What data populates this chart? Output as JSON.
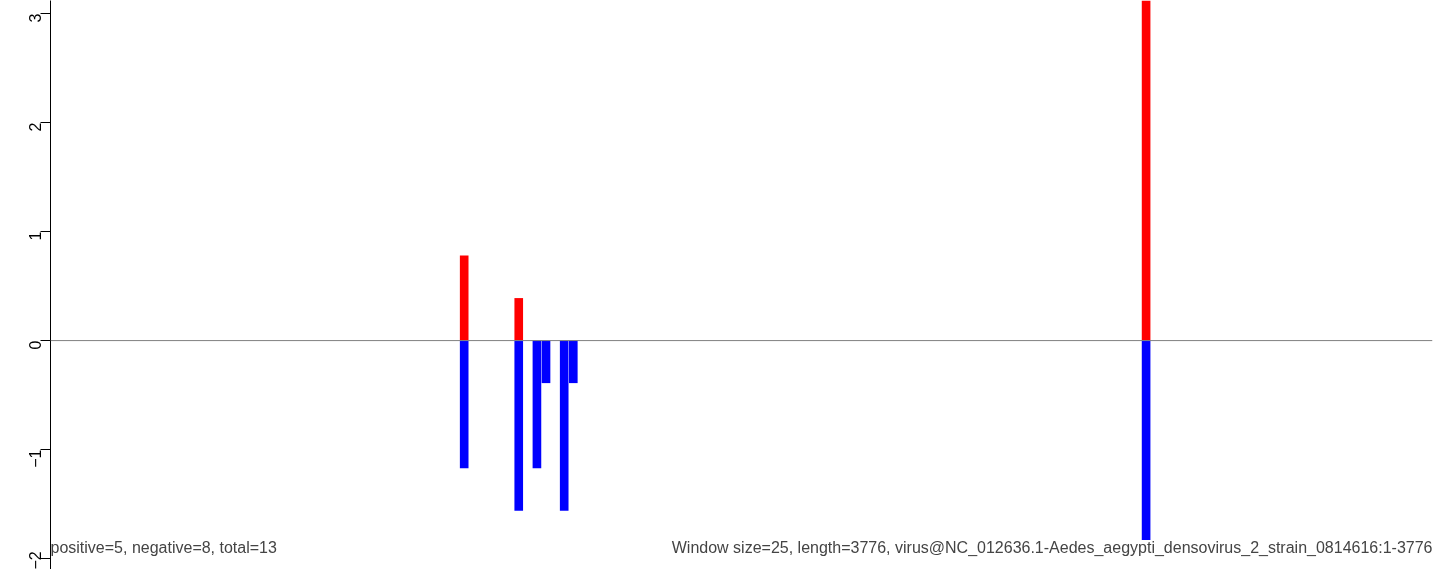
{
  "chart_data": {
    "type": "bar",
    "tick_labels": "y",
    "grid": false,
    "ylim": [
      -2.1,
      3.12
    ],
    "yticks": [
      -2,
      -1,
      0,
      1,
      2,
      3
    ],
    "categories": [
      null,
      null,
      null,
      null,
      null,
      null,
      null,
      null,
      null,
      null,
      null,
      null,
      null,
      null,
      null,
      null,
      null,
      null,
      null,
      null,
      null,
      null,
      null,
      null,
      null,
      null,
      null,
      null,
      null,
      null,
      null,
      null,
      null,
      null,
      null,
      null,
      null,
      null,
      null,
      null,
      null,
      null,
      null,
      null,
      null,
      null,
      null,
      null,
      null,
      null,
      null,
      null,
      null,
      null,
      null,
      null,
      null,
      null,
      null,
      null,
      null,
      null,
      null,
      null,
      null,
      null,
      null,
      null,
      null,
      null,
      null,
      null,
      null,
      null,
      null,
      null,
      null,
      null,
      null,
      null,
      null,
      null,
      null,
      null,
      null,
      null,
      null,
      null,
      null,
      null,
      null,
      null,
      null,
      null,
      null,
      null,
      null,
      null,
      null,
      null,
      null,
      null,
      null,
      null,
      null,
      null,
      null,
      null,
      null,
      null,
      null,
      null,
      null,
      null,
      null,
      null,
      null,
      null,
      null,
      null,
      null,
      null,
      null,
      null,
      null,
      null,
      null,
      null,
      null,
      null,
      null,
      null,
      null,
      null,
      null,
      null,
      null,
      null,
      null,
      null,
      null,
      null,
      null,
      null,
      null,
      null,
      null,
      null,
      null,
      null,
      null,
      null
    ],
    "series": [
      {
        "color": "#ff0000",
        "values": [
          0,
          0,
          0,
          0,
          0,
          0,
          0,
          0,
          0,
          0,
          0,
          0,
          0,
          0,
          0,
          0,
          0,
          0,
          0,
          0,
          0,
          0,
          0,
          0,
          0,
          0,
          0,
          0,
          0,
          0,
          0,
          0,
          0,
          0,
          0,
          0,
          0,
          0,
          0,
          0,
          0,
          0,
          0,
          0,
          0,
          0.78,
          0,
          0,
          0,
          0,
          0,
          0.39,
          0,
          0,
          0,
          0,
          0,
          0,
          0,
          0,
          0,
          0,
          0,
          0,
          0,
          0,
          0,
          0,
          0,
          0,
          0,
          0,
          0,
          0,
          0,
          0,
          0,
          0,
          0,
          0,
          0,
          0,
          0,
          0,
          0,
          0,
          0,
          0,
          0,
          0,
          0,
          0,
          0,
          0,
          0,
          0,
          0,
          0,
          0,
          0,
          0,
          0,
          0,
          0,
          0,
          0,
          0,
          0,
          0,
          0,
          0,
          0,
          0,
          0,
          0,
          0,
          0,
          0,
          0,
          0,
          3.12,
          0,
          0,
          0,
          0,
          0,
          0,
          0,
          0,
          0,
          0,
          0,
          0,
          0,
          0,
          0,
          0,
          0,
          0,
          0,
          0,
          0,
          0,
          0,
          0,
          0,
          0,
          0,
          0,
          0,
          0,
          0
        ]
      },
      {
        "color": "#0000ff",
        "values": [
          0,
          0,
          0,
          0,
          0,
          0,
          0,
          0,
          0,
          0,
          0,
          0,
          0,
          0,
          0,
          0,
          0,
          0,
          0,
          0,
          0,
          0,
          0,
          0,
          0,
          0,
          0,
          0,
          0,
          0,
          0,
          0,
          0,
          0,
          0,
          0,
          0,
          0,
          0,
          0,
          0,
          0,
          0,
          0,
          0,
          -1.17,
          0,
          0,
          0,
          0,
          0,
          -1.56,
          0,
          -1.17,
          -0.39,
          0,
          -1.56,
          -0.39,
          0,
          0,
          0,
          0,
          0,
          0,
          0,
          0,
          0,
          0,
          0,
          0,
          0,
          0,
          0,
          0,
          0,
          0,
          0,
          0,
          0,
          0,
          0,
          0,
          0,
          0,
          0,
          0,
          0,
          0,
          0,
          0,
          0,
          0,
          0,
          0,
          0,
          0,
          0,
          0,
          0,
          0,
          0,
          0,
          0,
          0,
          0,
          0,
          0,
          0,
          0,
          0,
          0,
          0,
          0,
          0,
          0,
          0,
          0,
          0,
          0,
          0,
          -1.83,
          0,
          0,
          0,
          0,
          0,
          0,
          0,
          0,
          0,
          0,
          0,
          0,
          0,
          0,
          0,
          0,
          0,
          0,
          0,
          0,
          0,
          0,
          0,
          0,
          0,
          0,
          0,
          0,
          0,
          0,
          0
        ]
      }
    ],
    "ref_lines": [
      {
        "axis": "y",
        "value": 0,
        "color": "#808080"
      }
    ],
    "annotations": [
      "positive=5, negative=8, total=13",
      "Window size=25, length=3776, virus@NC_012636.1-Aedes_aegypti_densovirus_2_strain_0814616:1-3776"
    ]
  }
}
